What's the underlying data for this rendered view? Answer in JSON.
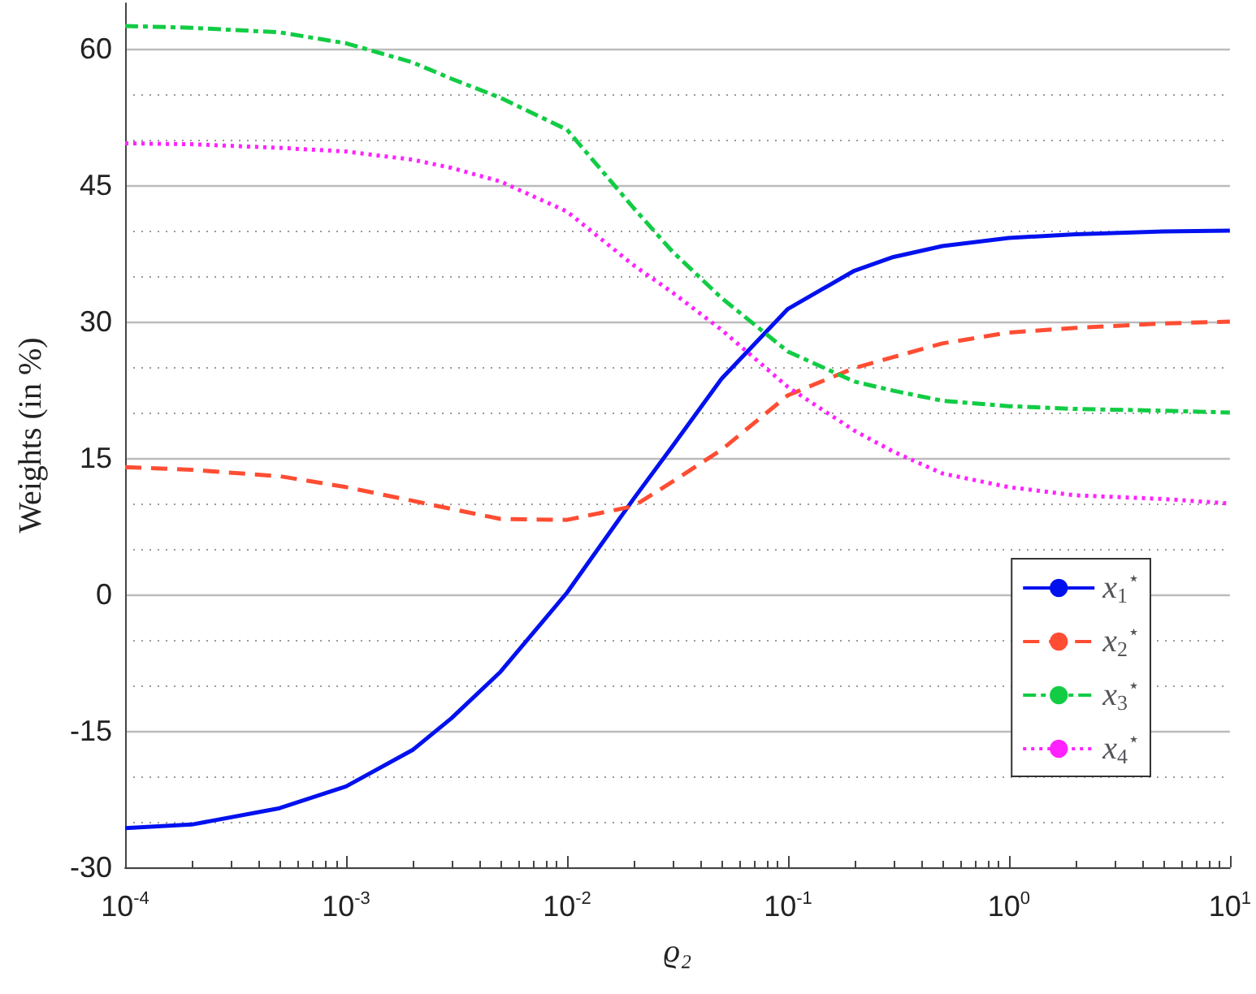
{
  "chart_data": {
    "type": "line",
    "xlabel": "ϱ₂",
    "ylabel": "Weights (in %)",
    "x": [
      0.0001,
      0.0002,
      0.0005,
      0.001,
      0.002,
      0.003,
      0.005,
      0.01,
      0.02,
      0.03,
      0.05,
      0.1,
      0.2,
      0.3,
      0.5,
      1,
      2,
      5,
      10
    ],
    "series": [
      {
        "name": "x$_{1}$$^{⋆}$",
        "color": "#0011ee",
        "line_style": "solid",
        "values": [
          -25.7,
          -25.3,
          -23.5,
          -21.1,
          -17.1,
          -13.6,
          -8.5,
          0.2,
          10.5,
          16.3,
          23.7,
          31.4,
          35.6,
          37.1,
          38.3,
          39.2,
          39.6,
          39.9,
          40
        ]
      },
      {
        "name": "x$_{2}$$^{⋆}$",
        "color": "#ff4d33",
        "line_style": "dashed",
        "values": [
          14,
          13.7,
          13,
          11.8,
          10.3,
          9.4,
          8.3,
          8.2,
          9.7,
          12.4,
          15.9,
          21.9,
          24.9,
          26.1,
          27.6,
          28.8,
          29.3,
          29.8,
          30
        ]
      },
      {
        "name": "x$_{3}$$^{⋆}$",
        "color": "#11cc44",
        "line_style": "dashdot",
        "values": [
          62.5,
          62.3,
          61.8,
          60.6,
          58.5,
          56.7,
          54.6,
          51.1,
          42.5,
          37.7,
          32.6,
          26.7,
          23.4,
          22.4,
          21.3,
          20.7,
          20.4,
          20.2,
          20
        ]
      },
      {
        "name": "x$_{4}$$^{⋆}$",
        "color": "#ff22ff",
        "line_style": "dotted",
        "values": [
          49.6,
          49.5,
          49.1,
          48.7,
          47.8,
          46.9,
          45.4,
          42.1,
          36.2,
          33.2,
          29.1,
          22.8,
          18,
          15.7,
          13.3,
          11.8,
          10.9,
          10.5,
          10
        ]
      }
    ],
    "log": "x",
    "xlim": [
      0.0001,
      10
    ],
    "xticks": [
      {
        "value": 0.0001,
        "label": "10$^{-4}$"
      },
      {
        "value": 0.001,
        "label": "10$^{-3}$"
      },
      {
        "value": 0.01,
        "label": "10$^{-2}$"
      },
      {
        "value": 0.1,
        "label": "10$^{-1}$"
      },
      {
        "value": 1,
        "label": "10$^{0}$"
      },
      {
        "value": 10,
        "label": "10$^{1}$"
      }
    ],
    "ylim": [
      -30,
      65
    ],
    "yticks": [
      -30,
      -15,
      0,
      15,
      30,
      45,
      60
    ],
    "grid": "y",
    "legend": "right",
    "marker": "none"
  }
}
